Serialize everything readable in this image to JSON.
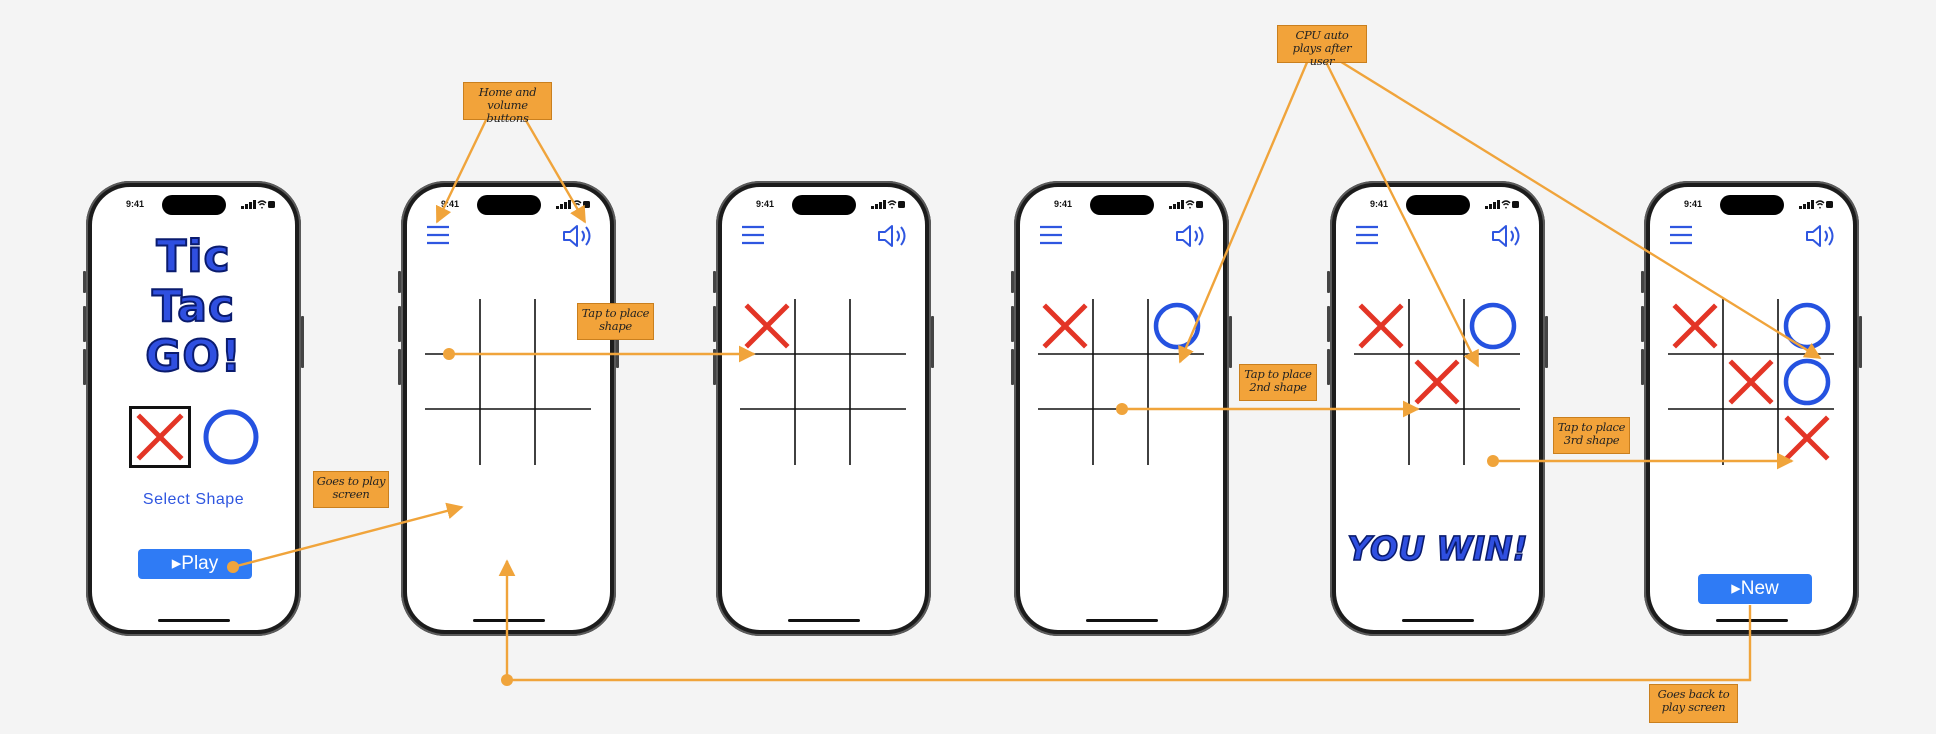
{
  "status_time": "9:41",
  "colors": {
    "accent": "#2f56e0",
    "x_mark": "#e33526",
    "o_mark": "#2552e0",
    "note": "#f2a33a",
    "connector": "#f0a43b",
    "button": "#2f7bf5"
  },
  "screens": [
    {
      "id": "start",
      "title_lines": [
        "Tic",
        "Tac",
        "GO!"
      ],
      "select_label": "Select Shape",
      "play_label": "▸Play"
    },
    {
      "id": "empty-board",
      "board": [
        "",
        "",
        "",
        "",
        "",
        "",
        "",
        "",
        ""
      ]
    },
    {
      "id": "first-move",
      "board": [
        "X",
        "",
        "",
        "",
        "",
        "",
        "",
        "",
        ""
      ]
    },
    {
      "id": "cpu-reply",
      "board": [
        "X",
        "",
        "O",
        "",
        "",
        "",
        "",
        "",
        ""
      ]
    },
    {
      "id": "win",
      "board": [
        "X",
        "",
        "O",
        "",
        "X",
        "",
        "",
        "",
        ""
      ],
      "win_text": "YOU WIN!"
    },
    {
      "id": "final",
      "board": [
        "X",
        "",
        "O",
        "",
        "X",
        "O",
        "",
        "",
        "X"
      ],
      "new_label": "▸New"
    }
  ],
  "icons": {
    "menu": "hamburger-menu-icon",
    "volume": "speaker-volume-icon"
  },
  "annotations": {
    "home_volume": "Home and volume buttons",
    "cpu": "CPU auto plays after user",
    "tap1": "Tap to place shape",
    "tap2": "Tap to place 2nd shape",
    "tap3": "Tap to place 3rd shape",
    "goes_play": "Goes to play screen",
    "goes_back": "Goes back to play screen"
  }
}
